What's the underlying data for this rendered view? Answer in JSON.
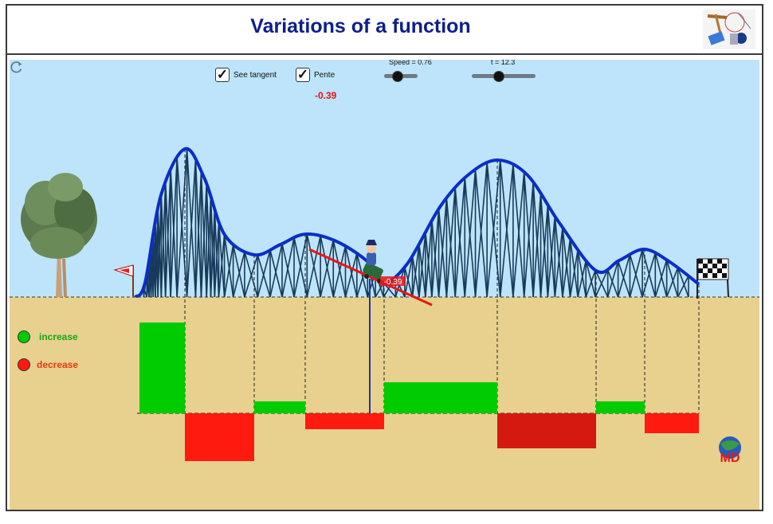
{
  "header": {
    "title": "Variations of a function"
  },
  "controls": {
    "see_tangent_label": "See tangent",
    "pente_label": "Pente",
    "slope_value": "-0.39",
    "speed_label": "Speed = 0.76",
    "speed_value": 0.76,
    "t_label": "t = 12.3",
    "t_value": 12.3
  },
  "legend": {
    "increase_label": "increase",
    "decrease_label": "decrease"
  },
  "tangent_marker": {
    "label": "-0.39"
  },
  "colors": {
    "sky": "#bde4fa",
    "ground": "#e8d08e",
    "track": "#0a2ec8",
    "increase": "#00cc00",
    "decrease": "#ff1a10",
    "decrease_dark": "#d41a10",
    "tangent": "#e81515",
    "title": "#0d1f8a"
  },
  "icons": [
    "reset-icon",
    "tree-icon",
    "start-flag-icon",
    "finish-flag-icon",
    "rider-icon",
    "globe-logo-icon",
    "header-logo-icon"
  ]
}
